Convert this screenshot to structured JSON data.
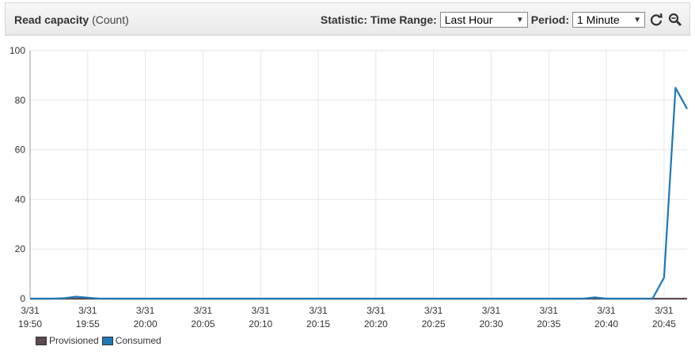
{
  "header": {
    "title": "Read capacity",
    "unit": "(Count)",
    "statistic_label": "Statistic:",
    "time_range_label": "Time Range:",
    "time_range_value": "Last Hour",
    "period_label": "Period:",
    "period_value": "1 Minute"
  },
  "icons": {
    "refresh": "refresh-icon",
    "zoom": "zoom-icon",
    "dropdown": "chevron-down-icon"
  },
  "colors": {
    "provisioned": "#5b4a4e",
    "consumed": "#1f77b4",
    "grid": "#e6e6e6",
    "axis": "#999999"
  },
  "chart_data": {
    "type": "line",
    "title": "Read capacity (Count)",
    "ylim": [
      0,
      100
    ],
    "yticks": [
      0,
      20,
      40,
      60,
      80,
      100
    ],
    "xlim": [
      0,
      57
    ],
    "xticks": [
      {
        "t": 0,
        "date": "3/31",
        "time": "19:50"
      },
      {
        "t": 5,
        "date": "3/31",
        "time": "19:55"
      },
      {
        "t": 10,
        "date": "3/31",
        "time": "20:00"
      },
      {
        "t": 15,
        "date": "3/31",
        "time": "20:05"
      },
      {
        "t": 20,
        "date": "3/31",
        "time": "20:10"
      },
      {
        "t": 25,
        "date": "3/31",
        "time": "20:15"
      },
      {
        "t": 30,
        "date": "3/31",
        "time": "20:20"
      },
      {
        "t": 35,
        "date": "3/31",
        "time": "20:25"
      },
      {
        "t": 40,
        "date": "3/31",
        "time": "20:30"
      },
      {
        "t": 45,
        "date": "3/31",
        "time": "20:35"
      },
      {
        "t": 50,
        "date": "3/31",
        "time": "20:40"
      },
      {
        "t": 55,
        "date": "3/31",
        "time": "20:45"
      }
    ],
    "series": [
      {
        "name": "Provisioned",
        "color": "#5b4a4e",
        "x": [
          0,
          57
        ],
        "y": [
          0,
          0
        ]
      },
      {
        "name": "Consumed",
        "color": "#1f77b4",
        "x": [
          0,
          2,
          3,
          4,
          6,
          20,
          35,
          48,
          49,
          50,
          54,
          55,
          56,
          57
        ],
        "y": [
          0,
          0,
          0.2,
          0.8,
          0,
          0,
          0,
          0,
          0.5,
          0,
          0,
          8.5,
          85,
          76.5
        ]
      }
    ]
  },
  "legend": {
    "provisioned": "Provisioned",
    "consumed": "Consumed"
  }
}
